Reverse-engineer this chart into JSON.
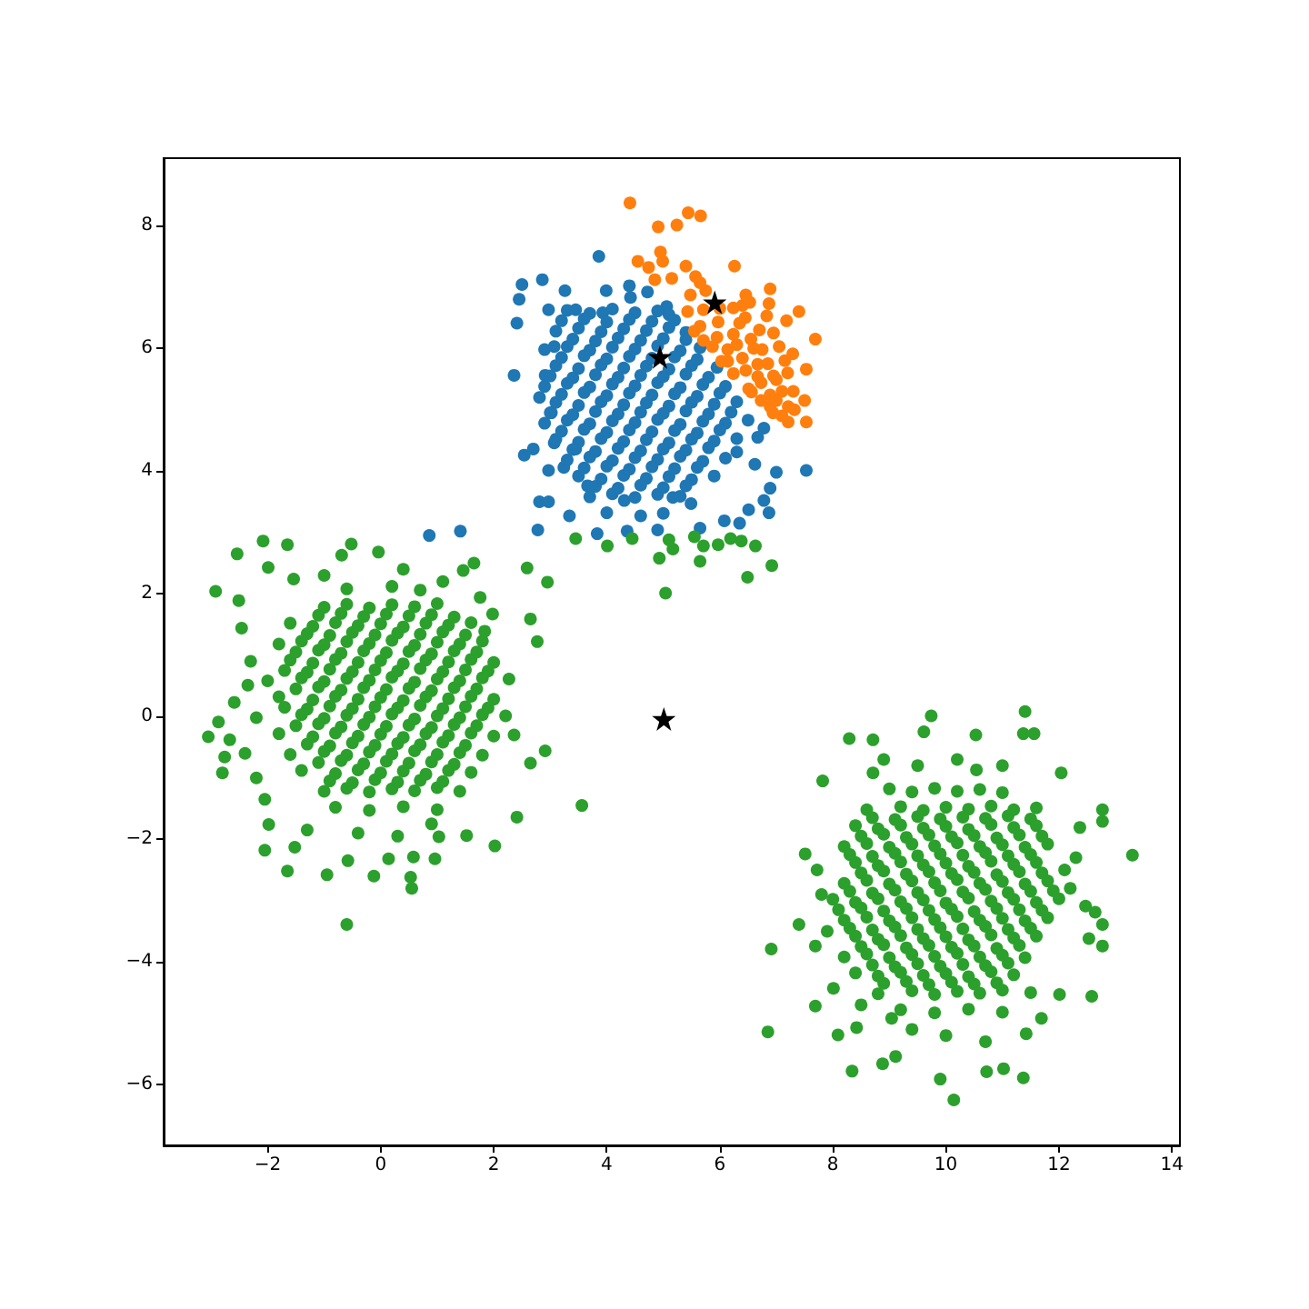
{
  "chart_data": {
    "type": "scatter",
    "marker": "circle",
    "xlim": [
      -3.84,
      14.14
    ],
    "ylim": [
      -6.99,
      9.1
    ],
    "xticks": [
      {
        "value": -2,
        "label": "−2"
      },
      0,
      2,
      4,
      6,
      8,
      10,
      12,
      14
    ],
    "yticks": [
      {
        "value": -6,
        "label": "−6"
      },
      {
        "value": -4,
        "label": "−4"
      },
      {
        "value": -2,
        "label": "−2"
      },
      0,
      2,
      4,
      6,
      8
    ],
    "series": [
      {
        "color": "#1f77b4",
        "x": [
          3.86,
          2.86,
          2.5,
          2.45,
          3.26,
          3.99,
          4.4,
          4.72,
          2.41,
          2.97,
          3.45,
          3.93,
          4.42,
          5.06,
          2.36,
          2.91,
          3.07,
          2.81,
          3.02,
          2.54,
          2.7,
          2.97,
          2.81,
          2.97,
          2.78,
          3.34,
          3.83,
          4.36,
          4.9,
          5.65,
          6.08,
          6.35,
          6.51,
          6.87,
          6.78,
          6.89,
          7.53,
          7.0,
          6.62,
          6.78,
          6.67,
          6.3,
          5.17,
          5.49,
          4.31,
          3.66,
          3.24,
          3.07,
          3.45,
          0.86,
          1.41,
          3.3,
          3.7,
          4.1,
          4.5,
          4.9,
          5.1,
          3.1,
          3.5,
          3.9,
          4.3,
          4.7,
          5.1,
          5.4,
          2.9,
          3.3,
          3.7,
          4.1,
          4.5,
          4.9,
          5.3,
          5.65,
          3.1,
          3.5,
          3.9,
          4.3,
          4.7,
          5.1,
          5.5,
          5.95,
          2.9,
          3.3,
          3.7,
          4.1,
          4.5,
          4.9,
          5.3,
          5.7,
          6.1,
          3.1,
          3.5,
          3.9,
          4.3,
          4.7,
          5.1,
          5.5,
          5.9,
          6.3,
          2.9,
          3.3,
          3.7,
          4.1,
          4.5,
          4.9,
          5.3,
          5.7,
          6.1,
          6.5,
          3.1,
          3.5,
          3.9,
          4.3,
          4.7,
          5.1,
          5.5,
          5.9,
          6.3,
          3.3,
          3.7,
          4.1,
          4.5,
          4.9,
          5.3,
          5.7,
          6.1,
          3.5,
          3.9,
          4.3,
          4.7,
          5.1,
          5.5,
          5.9,
          3.7,
          4.1,
          4.5,
          4.9,
          5.3,
          4.0,
          4.6,
          5.0,
          3.2,
          3.6,
          4.0,
          4.4,
          4.8,
          5.2,
          3.4,
          3.8,
          4.2,
          4.6,
          5.0,
          5.4,
          3.2,
          3.6,
          4.0,
          4.4,
          4.8,
          5.2,
          5.6,
          3.0,
          3.4,
          3.8,
          4.2,
          4.6,
          5.0,
          5.4,
          5.8,
          3.2,
          3.6,
          4.0,
          4.4,
          4.8,
          5.2,
          5.6,
          6.0,
          3.0,
          3.4,
          3.8,
          4.2,
          4.6,
          5.0,
          5.4,
          5.8,
          6.2,
          3.2,
          3.6,
          4.0,
          4.4,
          4.8,
          5.2,
          5.6,
          6.0,
          3.4,
          3.8,
          4.2,
          4.6,
          5.0,
          5.4,
          5.8,
          3.6,
          4.0,
          4.4,
          4.8,
          5.2,
          5.6,
          3.8,
          4.2,
          4.6,
          5.0,
          5.4
        ],
        "values": [
          7.5,
          7.12,
          7.04,
          6.8,
          6.94,
          6.94,
          7.02,
          6.92,
          6.41,
          6.63,
          6.63,
          6.58,
          6.83,
          6.68,
          5.56,
          5.56,
          6.03,
          5.2,
          4.95,
          4.26,
          4.36,
          4.01,
          3.5,
          3.5,
          3.04,
          3.27,
          2.98,
          3.02,
          3.04,
          3.07,
          3.19,
          3.15,
          3.37,
          3.32,
          3.52,
          3.72,
          4.01,
          3.98,
          4.11,
          4.7,
          4.55,
          4.31,
          3.57,
          3.47,
          3.52,
          3.76,
          4.06,
          4.46,
          4.36,
          2.95,
          3.02,
          6.62,
          6.57,
          6.64,
          6.58,
          6.61,
          6.55,
          6.28,
          6.33,
          6.27,
          6.32,
          6.29,
          6.34,
          6.26,
          5.98,
          6.03,
          5.97,
          6.02,
          5.99,
          6.04,
          5.96,
          6.01,
          5.72,
          5.67,
          5.73,
          5.68,
          5.71,
          5.66,
          5.72,
          5.69,
          5.38,
          5.43,
          5.37,
          5.42,
          5.39,
          5.44,
          5.36,
          5.41,
          5.38,
          5.12,
          5.07,
          5.13,
          5.08,
          5.11,
          5.06,
          5.12,
          5.09,
          5.13,
          4.78,
          4.83,
          4.77,
          4.82,
          4.79,
          4.84,
          4.76,
          4.81,
          4.78,
          4.83,
          4.52,
          4.47,
          4.53,
          4.48,
          4.51,
          4.46,
          4.52,
          4.49,
          4.53,
          4.18,
          4.23,
          4.17,
          4.22,
          4.19,
          4.24,
          4.16,
          4.21,
          3.92,
          3.87,
          3.93,
          3.88,
          3.91,
          3.86,
          3.92,
          3.58,
          3.63,
          3.57,
          3.62,
          3.59,
          3.32,
          3.27,
          3.31,
          6.45,
          6.48,
          6.43,
          6.47,
          6.44,
          6.46,
          6.15,
          6.12,
          6.17,
          6.13,
          6.16,
          6.14,
          5.85,
          5.88,
          5.83,
          5.87,
          5.84,
          5.86,
          5.82,
          5.55,
          5.52,
          5.57,
          5.53,
          5.56,
          5.54,
          5.58,
          5.53,
          5.25,
          5.28,
          5.23,
          5.27,
          5.24,
          5.26,
          5.22,
          5.27,
          4.95,
          4.92,
          4.97,
          4.93,
          4.96,
          4.94,
          4.98,
          4.93,
          4.96,
          4.65,
          4.68,
          4.63,
          4.67,
          4.64,
          4.66,
          4.62,
          4.67,
          4.35,
          4.32,
          4.37,
          4.33,
          4.36,
          4.34,
          4.38,
          4.05,
          4.08,
          4.03,
          4.07,
          4.04,
          4.06,
          3.75,
          3.72,
          3.77,
          3.73,
          3.76
        ]
      },
      {
        "color": "#ff7f0e",
        "x": [
          4.41,
          4.91,
          5.24,
          5.44,
          5.66,
          4.55,
          4.95,
          4.99,
          4.74,
          4.85,
          5.15,
          5.4,
          5.57,
          5.65,
          6.26,
          5.48,
          5.75,
          6.46,
          6.53,
          6.89,
          6.87,
          6.24,
          5.43,
          6.83,
          7.18,
          7.4,
          6.35,
          5.65,
          5.95,
          6.3,
          6.75,
          7.05,
          7.29,
          7.69,
          7.53,
          6.67,
          6.4,
          6.14,
          7.0,
          6.73,
          6.56,
          6.89,
          7.5,
          7.21,
          7.1,
          7.53,
          7.32,
          6.89,
          5.97,
          5.71,
          5.87,
          6.24,
          6.14,
          6.46,
          5.55,
          5.71,
          6.03,
          6.24,
          6.51,
          6.73,
          6.94,
          7.21,
          6.67,
          6.55,
          6.85,
          7.2,
          6.0,
          7.1,
          6.45,
          6.4,
          6.7,
          6.95,
          6.6,
          7.15,
          6.95,
          7.3,
          7.0
        ],
        "values": [
          8.37,
          7.98,
          8.01,
          8.21,
          8.16,
          7.42,
          7.57,
          7.42,
          7.32,
          7.12,
          7.14,
          7.34,
          7.17,
          7.07,
          7.34,
          6.87,
          6.94,
          6.87,
          6.75,
          6.97,
          6.73,
          6.66,
          6.6,
          6.53,
          6.45,
          6.6,
          6.41,
          6.36,
          6.18,
          6.06,
          5.98,
          6.03,
          5.91,
          6.15,
          5.66,
          5.74,
          5.84,
          5.79,
          5.49,
          5.44,
          5.29,
          5.24,
          5.15,
          5.05,
          4.9,
          4.8,
          5.0,
          5.05,
          6.43,
          6.63,
          6.03,
          6.23,
          5.98,
          5.64,
          6.28,
          6.13,
          5.79,
          5.59,
          5.34,
          5.15,
          4.95,
          4.8,
          5.54,
          6.15,
          5.75,
          5.6,
          6.65,
          5.3,
          6.5,
          6.7,
          6.3,
          6.25,
          6.0,
          5.8,
          5.55,
          5.3,
          5.15
        ]
      },
      {
        "color": "#2ca02c",
        "x": [
          3.45,
          4.01,
          4.45,
          5.1,
          5.17,
          5.55,
          5.71,
          5.97,
          6.19,
          6.38,
          6.63,
          4.93,
          5.65,
          6.92,
          2.59,
          2.95,
          5.04,
          6.49,
          -2.08,
          -1.65,
          -2.54,
          -1.99,
          -0.52,
          -0.69,
          -0.04,
          -2.92,
          -2.51,
          -1.54,
          -2.46,
          1.46,
          1.65,
          1.76,
          2.65,
          1.98,
          2.77,
          1.84,
          -3.05,
          -2.87,
          -2.67,
          -2.76,
          -2.8,
          -2.35,
          -2.59,
          2.91,
          2.65,
          2.36,
          2.21,
          2.27,
          -2.05,
          -2.05,
          -1.52,
          -1.65,
          -0.95,
          -0.6,
          -0.12,
          0.55,
          0.53,
          0.96,
          0.58,
          0.14,
          -0.58,
          2.02,
          2.41,
          1.52,
          1.03,
          3.56,
          -1.98,
          -1.3,
          -0.4,
          0.3,
          0.9,
          -1.0,
          0.4,
          1.1,
          -2.3,
          -2.4,
          -2.2,
          -0.6,
          0.2,
          0.7,
          -1.0,
          -0.6,
          -0.2,
          0.2,
          0.6,
          1.0,
          -1.6,
          -1.2,
          -0.8,
          -0.4,
          0.0,
          0.4,
          0.8,
          1.2,
          1.6,
          -1.8,
          -1.4,
          -1.0,
          -0.6,
          -0.2,
          0.2,
          0.6,
          1.0,
          1.4,
          1.8,
          -1.6,
          -1.2,
          -0.8,
          -0.4,
          0.0,
          0.4,
          0.8,
          1.2,
          1.6,
          2.0,
          -2.0,
          -1.4,
          -1.0,
          -0.6,
          -0.2,
          0.2,
          0.6,
          1.0,
          1.4,
          1.8,
          -1.8,
          -1.2,
          -0.8,
          -0.4,
          0.0,
          0.4,
          0.8,
          1.2,
          1.6,
          2.0,
          -2.2,
          -1.4,
          -1.0,
          -0.6,
          -0.2,
          0.2,
          0.6,
          1.0,
          1.4,
          1.8,
          -1.8,
          -1.2,
          -0.8,
          -0.4,
          0.0,
          0.4,
          0.8,
          1.2,
          1.6,
          2.0,
          -1.6,
          -1.0,
          -0.6,
          -0.2,
          0.2,
          0.6,
          1.0,
          1.4,
          1.8,
          -1.4,
          -0.8,
          -0.4,
          0.0,
          0.4,
          0.8,
          1.2,
          1.6,
          -1.0,
          -0.6,
          -0.2,
          0.2,
          0.6,
          1.0,
          1.4,
          -0.8,
          -0.2,
          0.4,
          1.0,
          -1.1,
          -0.7,
          -0.3,
          0.1,
          0.5,
          0.9,
          1.3,
          -1.3,
          -0.9,
          -0.5,
          -0.1,
          0.3,
          0.7,
          1.1,
          1.5,
          -1.5,
          -1.1,
          -0.7,
          -0.3,
          0.1,
          0.5,
          0.9,
          1.3,
          1.7,
          -1.7,
          -1.3,
          -0.9,
          -0.5,
          -0.1,
          0.3,
          0.7,
          1.1,
          1.5,
          1.9,
          -1.5,
          -1.1,
          -0.7,
          -0.3,
          0.1,
          0.5,
          0.9,
          1.3,
          1.7,
          -1.7,
          -1.3,
          -0.9,
          -0.5,
          -0.1,
          0.3,
          0.7,
          1.1,
          1.5,
          1.9,
          -1.5,
          -1.1,
          -0.7,
          -0.3,
          0.1,
          0.5,
          0.9,
          1.3,
          1.7,
          -1.3,
          -0.9,
          -0.5,
          -0.1,
          0.3,
          0.7,
          1.1,
          1.5,
          -1.1,
          -0.7,
          -0.3,
          0.1,
          0.5,
          0.9,
          1.3,
          -0.9,
          -0.5,
          -0.1,
          0.3,
          0.7,
          1.1,
          11.4,
          9.74,
          8.29,
          8.71,
          9.61,
          10.53,
          11.37,
          11.56,
          7.82,
          12.04,
          7.51,
          7.72,
          13.3,
          12.77,
          12.77,
          6.91,
          7.4,
          7.69,
          6.85,
          7.69,
          8.09,
          8.34,
          8.88,
          9.11,
          9.9,
          10.14,
          10.72,
          11.02,
          11.37,
          11.42,
          12.58,
          12.01,
          12.77,
          12.53,
          12.77,
          12.47,
          12.64,
          12.37,
          12.1,
          8.42,
          9.04,
          11.69,
          8.01,
          8.71,
          10.54,
          8.9,
          9.5,
          10.2,
          11.0,
          12.2,
          12.3,
          7.8,
          7.9,
          8.5,
          11.5,
          10.0,
          9.4,
          10.7,
          9.0,
          9.4,
          9.8,
          10.2,
          10.6,
          11.0,
          8.6,
          9.2,
          9.6,
          10.0,
          10.4,
          10.8,
          11.2,
          11.6,
          8.4,
          8.8,
          9.2,
          9.6,
          10.0,
          10.4,
          10.8,
          11.2,
          11.6,
          8.2,
          8.6,
          9.0,
          9.4,
          9.8,
          10.2,
          10.6,
          11.0,
          11.4,
          11.8,
          8.4,
          8.8,
          9.2,
          9.6,
          10.0,
          10.4,
          10.8,
          11.2,
          11.6,
          8.2,
          8.6,
          9.0,
          9.4,
          9.8,
          10.2,
          10.6,
          11.0,
          11.4,
          11.8,
          8.0,
          8.4,
          8.8,
          9.2,
          9.6,
          10.0,
          10.4,
          10.8,
          11.2,
          11.6,
          12.0,
          8.2,
          8.6,
          9.0,
          9.4,
          9.8,
          10.2,
          10.6,
          11.0,
          11.4,
          11.8,
          8.4,
          8.8,
          9.2,
          9.6,
          10.0,
          10.4,
          10.8,
          11.2,
          11.6,
          8.2,
          8.6,
          9.0,
          9.4,
          9.8,
          10.2,
          10.6,
          11.0,
          11.4,
          8.4,
          8.8,
          9.2,
          9.6,
          10.0,
          10.4,
          10.8,
          11.2,
          8.8,
          9.4,
          9.8,
          10.2,
          10.6,
          11.0,
          9.2,
          9.8,
          10.4,
          11.0,
          8.7,
          9.1,
          9.5,
          9.9,
          10.3,
          10.7,
          11.1,
          11.5,
          8.5,
          8.9,
          9.3,
          9.7,
          10.1,
          10.5,
          10.9,
          11.3,
          11.7,
          8.3,
          8.7,
          9.1,
          9.5,
          9.9,
          10.3,
          10.7,
          11.1,
          11.5,
          8.5,
          8.9,
          9.3,
          9.7,
          10.1,
          10.5,
          10.9,
          11.3,
          11.7,
          8.3,
          8.7,
          9.1,
          9.5,
          9.9,
          10.3,
          10.7,
          11.1,
          11.5,
          11.9,
          8.1,
          8.5,
          8.9,
          9.3,
          9.7,
          10.1,
          10.5,
          10.9,
          11.3,
          11.7,
          8.3,
          8.7,
          9.1,
          9.5,
          9.9,
          10.3,
          10.7,
          11.1,
          11.5,
          8.5,
          8.9,
          9.3,
          9.7,
          10.1,
          10.5,
          10.9,
          11.3,
          8.7,
          9.1,
          9.5,
          9.9,
          10.3,
          10.7,
          11.1,
          8.9,
          9.3,
          9.7,
          10.1,
          10.5,
          10.9
        ],
        "values": [
          2.9,
          2.78,
          2.9,
          2.88,
          2.73,
          2.93,
          2.78,
          2.8,
          2.9,
          2.86,
          2.78,
          2.58,
          2.53,
          2.46,
          2.42,
          2.19,
          2.01,
          2.27,
          2.86,
          2.8,
          2.65,
          2.43,
          2.81,
          2.63,
          2.68,
          2.04,
          1.89,
          2.24,
          1.44,
          2.38,
          2.5,
          1.94,
          1.59,
          1.67,
          1.22,
          1.39,
          -0.33,
          -0.09,
          -0.38,
          -0.66,
          -0.92,
          0.51,
          0.23,
          -0.56,
          -0.76,
          -0.3,
          0.01,
          0.61,
          -1.35,
          -2.18,
          -2.13,
          -2.52,
          -2.58,
          -3.39,
          -2.6,
          -2.8,
          -2.62,
          -2.32,
          -2.29,
          -2.32,
          -2.35,
          -2.11,
          -1.64,
          -1.94,
          -1.96,
          -1.45,
          -1.76,
          -1.85,
          -1.9,
          -1.95,
          -1.75,
          2.3,
          2.4,
          2.2,
          0.9,
          -0.6,
          -1.0,
          2.08,
          2.12,
          2.06,
          1.78,
          1.83,
          1.77,
          1.82,
          1.79,
          1.84,
          1.52,
          1.47,
          1.53,
          1.48,
          1.51,
          1.46,
          1.52,
          1.49,
          1.53,
          1.18,
          1.23,
          1.17,
          1.22,
          1.19,
          1.24,
          1.16,
          1.21,
          1.18,
          1.23,
          0.92,
          0.87,
          0.93,
          0.88,
          0.91,
          0.86,
          0.92,
          0.89,
          0.93,
          0.88,
          0.58,
          0.63,
          0.57,
          0.62,
          0.59,
          0.64,
          0.56,
          0.61,
          0.58,
          0.63,
          0.32,
          0.27,
          0.33,
          0.28,
          0.31,
          0.26,
          0.32,
          0.29,
          0.33,
          0.28,
          -0.02,
          0.03,
          -0.03,
          0.02,
          -0.01,
          0.04,
          -0.04,
          0.01,
          -0.02,
          0.03,
          -0.28,
          -0.33,
          -0.27,
          -0.32,
          -0.29,
          -0.34,
          -0.28,
          -0.31,
          -0.27,
          -0.32,
          -0.62,
          -0.57,
          -0.63,
          -0.58,
          -0.61,
          -0.56,
          -0.62,
          -0.59,
          -0.63,
          -0.88,
          -0.93,
          -0.87,
          -0.92,
          -0.89,
          -0.94,
          -0.88,
          -0.91,
          -1.22,
          -1.17,
          -1.23,
          -1.18,
          -1.21,
          -1.16,
          -1.22,
          -1.48,
          -1.53,
          -1.47,
          -1.52,
          1.65,
          1.68,
          1.63,
          1.67,
          1.64,
          1.66,
          1.62,
          1.35,
          1.32,
          1.37,
          1.33,
          1.36,
          1.34,
          1.38,
          1.33,
          1.05,
          1.08,
          1.03,
          1.07,
          1.04,
          1.06,
          1.02,
          1.07,
          1.05,
          0.75,
          0.72,
          0.77,
          0.73,
          0.76,
          0.74,
          0.78,
          0.73,
          0.76,
          0.74,
          0.45,
          0.48,
          0.43,
          0.47,
          0.44,
          0.46,
          0.42,
          0.47,
          0.45,
          0.15,
          0.12,
          0.17,
          0.13,
          0.16,
          0.14,
          0.18,
          0.13,
          0.16,
          0.14,
          -0.15,
          -0.12,
          -0.17,
          -0.13,
          -0.16,
          -0.14,
          -0.18,
          -0.13,
          -0.15,
          -0.45,
          -0.48,
          -0.43,
          -0.47,
          -0.44,
          -0.46,
          -0.42,
          -0.47,
          -0.75,
          -0.72,
          -0.77,
          -0.73,
          -0.76,
          -0.74,
          -0.78,
          -1.05,
          -1.08,
          -1.03,
          -1.07,
          -1.04,
          -1.06,
          0.08,
          0.01,
          -0.36,
          -0.38,
          -0.25,
          -0.3,
          -0.28,
          -0.28,
          -1.05,
          -0.92,
          -2.24,
          -2.5,
          -2.26,
          -1.52,
          -1.71,
          -3.79,
          -3.39,
          -3.74,
          -5.14,
          -4.72,
          -5.19,
          -5.78,
          -5.66,
          -5.54,
          -5.91,
          -6.25,
          -5.79,
          -5.74,
          -5.89,
          -5.17,
          -4.56,
          -4.53,
          -3.74,
          -3.62,
          -3.39,
          -3.09,
          -3.19,
          -1.81,
          -2.5,
          -5.07,
          -4.92,
          -4.92,
          -4.43,
          -0.92,
          -0.87,
          -0.7,
          -0.8,
          -0.7,
          -0.8,
          -2.8,
          -2.3,
          -2.9,
          -3.5,
          -4.7,
          -4.5,
          -5.2,
          -5.1,
          -5.3,
          -1.18,
          -1.23,
          -1.17,
          -1.22,
          -1.19,
          -1.24,
          -1.52,
          -1.47,
          -1.53,
          -1.48,
          -1.51,
          -1.46,
          -1.52,
          -1.49,
          -1.78,
          -1.83,
          -1.77,
          -1.82,
          -1.79,
          -1.84,
          -1.76,
          -1.81,
          -1.78,
          -2.12,
          -2.07,
          -2.13,
          -2.08,
          -2.11,
          -2.06,
          -2.12,
          -2.09,
          -2.13,
          -2.08,
          -2.38,
          -2.43,
          -2.37,
          -2.42,
          -2.39,
          -2.44,
          -2.36,
          -2.41,
          -2.38,
          -2.72,
          -2.67,
          -2.73,
          -2.68,
          -2.71,
          -2.66,
          -2.72,
          -2.69,
          -2.73,
          -2.68,
          -2.98,
          -3.03,
          -2.97,
          -3.02,
          -2.99,
          -3.04,
          -2.96,
          -3.01,
          -2.98,
          -3.03,
          -2.97,
          -3.32,
          -3.27,
          -3.33,
          -3.28,
          -3.31,
          -3.26,
          -3.32,
          -3.29,
          -3.33,
          -3.28,
          -3.58,
          -3.63,
          -3.57,
          -3.62,
          -3.59,
          -3.64,
          -3.56,
          -3.61,
          -3.58,
          -3.92,
          -3.87,
          -3.93,
          -3.88,
          -3.91,
          -3.86,
          -3.92,
          -3.89,
          -3.93,
          -4.18,
          -4.23,
          -4.17,
          -4.22,
          -4.19,
          -4.24,
          -4.16,
          -4.21,
          -4.52,
          -4.47,
          -4.53,
          -4.48,
          -4.51,
          -4.46,
          -4.78,
          -4.83,
          -4.77,
          -4.82,
          -1.65,
          -1.68,
          -1.63,
          -1.67,
          -1.64,
          -1.66,
          -1.62,
          -1.67,
          -1.95,
          -1.92,
          -1.97,
          -1.93,
          -1.96,
          -1.94,
          -1.98,
          -1.93,
          -1.95,
          -2.25,
          -2.28,
          -2.23,
          -2.27,
          -2.24,
          -2.26,
          -2.22,
          -2.27,
          -2.25,
          -2.55,
          -2.52,
          -2.57,
          -2.53,
          -2.56,
          -2.54,
          -2.58,
          -2.53,
          -2.55,
          -2.85,
          -2.88,
          -2.83,
          -2.87,
          -2.84,
          -2.86,
          -2.82,
          -2.87,
          -2.85,
          -2.84,
          -3.15,
          -3.12,
          -3.17,
          -3.13,
          -3.16,
          -3.14,
          -3.18,
          -3.13,
          -3.15,
          -3.16,
          -3.45,
          -3.48,
          -3.43,
          -3.47,
          -3.44,
          -3.46,
          -3.42,
          -3.47,
          -3.45,
          -3.75,
          -3.72,
          -3.77,
          -3.73,
          -3.76,
          -3.74,
          -3.78,
          -3.73,
          -4.05,
          -4.08,
          -4.03,
          -4.07,
          -4.04,
          -4.06,
          -4.02,
          -4.35,
          -4.32,
          -4.37,
          -4.33,
          -4.36,
          -4.34
        ]
      },
      {
        "color": "#000000",
        "marker": "star",
        "x": [
          4.94,
          5.91,
          5.01
        ],
        "values": [
          5.86,
          6.75,
          -0.04
        ]
      }
    ]
  }
}
